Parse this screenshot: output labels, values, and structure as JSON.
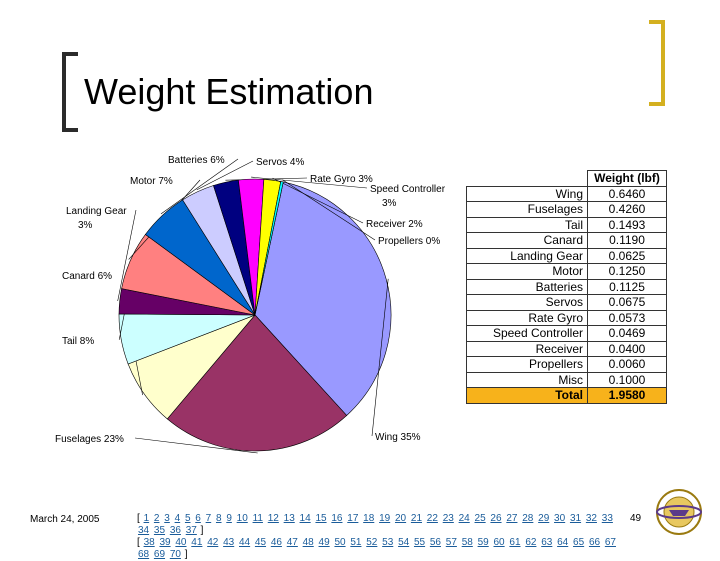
{
  "title": "Weight Estimation",
  "chart_data": {
    "type": "pie",
    "slices": [
      {
        "label": "Wing 35%",
        "value": 35,
        "color": "#9999ff"
      },
      {
        "label": "Fuselages 23%",
        "value": 23,
        "color": "#993366"
      },
      {
        "label": "Tail 8%",
        "value": 8,
        "color": "#ffffcc"
      },
      {
        "label": "Canard 6%",
        "value": 6,
        "color": "#ccffff"
      },
      {
        "label": "Landing Gear 3%",
        "value": 3,
        "color": "#660066"
      },
      {
        "label": "Motor 7%",
        "value": 7,
        "color": "#ff8080"
      },
      {
        "label": "Batteries 6%",
        "value": 6,
        "color": "#0066cc"
      },
      {
        "label": "Servos 4%",
        "value": 4,
        "color": "#ccccff"
      },
      {
        "label": "Rate Gyro 3%",
        "value": 3,
        "color": "#000080"
      },
      {
        "label": "Speed Controller 3%",
        "value": 3,
        "color": "#ff00ff"
      },
      {
        "label": "Receiver 2%",
        "value": 2,
        "color": "#ffff00"
      },
      {
        "label": "Propellers 0%",
        "value": 0.3,
        "color": "#00ffff"
      }
    ]
  },
  "table": {
    "header": "Weight (lbf)",
    "rows": [
      {
        "name": "Wing",
        "value": "0.6460"
      },
      {
        "name": "Fuselages",
        "value": "0.4260"
      },
      {
        "name": "Tail",
        "value": "0.1493"
      },
      {
        "name": "Canard",
        "value": "0.1190"
      },
      {
        "name": "Landing Gear",
        "value": "0.0625"
      },
      {
        "name": "Motor",
        "value": "0.1250"
      },
      {
        "name": "Batteries",
        "value": "0.1125"
      },
      {
        "name": "Servos",
        "value": "0.0675"
      },
      {
        "name": "Rate Gyro",
        "value": "0.0573"
      },
      {
        "name": "Speed Controller",
        "value": "0.0469"
      },
      {
        "name": "Receiver",
        "value": "0.0400"
      },
      {
        "name": "Propellers",
        "value": "0.0060"
      },
      {
        "name": "Misc",
        "value": "0.1000"
      }
    ],
    "total": {
      "name": "Total",
      "value": "1.9580"
    }
  },
  "footer": {
    "date": "March 24, 2005",
    "page": "49",
    "nav_line1": [
      "1",
      "2",
      "3",
      "4",
      "5",
      "6",
      "7",
      "8",
      "9",
      "10",
      "11",
      "12",
      "13",
      "14",
      "15",
      "16",
      "17",
      "18",
      "19",
      "20",
      "21",
      "22",
      "23",
      "24",
      "25",
      "26",
      "27",
      "28",
      "29",
      "30",
      "31",
      "32",
      "33",
      "34",
      "35",
      "36",
      "37"
    ],
    "nav_line2": [
      "38",
      "39",
      "40",
      "41",
      "42",
      "43",
      "44",
      "45",
      "46",
      "47",
      "48",
      "49",
      "50",
      "51",
      "52",
      "53",
      "54",
      "55",
      "56",
      "57",
      "58",
      "59",
      "60",
      "61",
      "62",
      "63",
      "64",
      "65",
      "66",
      "67",
      "68",
      "69",
      "70"
    ]
  },
  "logo_text": "University of Washington"
}
